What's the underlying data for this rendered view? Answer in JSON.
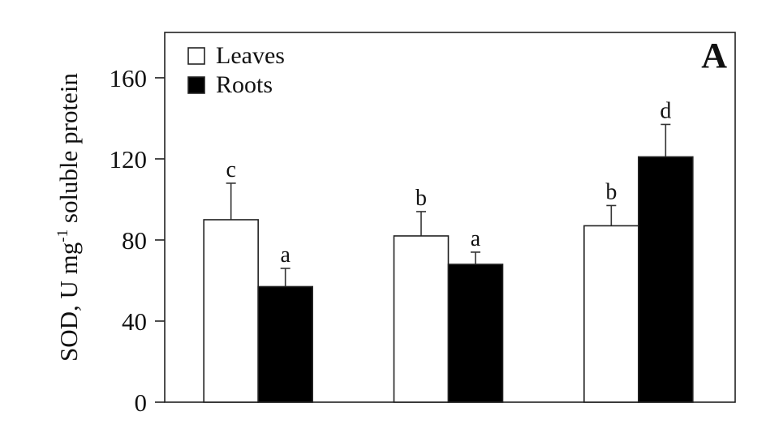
{
  "chart_data": {
    "type": "bar",
    "panel_label": "A",
    "ylabel": "SOD, U mg",
    "ylabel_sup": "-1",
    "ylabel_tail": " soluble protein",
    "ylim": [
      0,
      180
    ],
    "yticks": [
      0,
      40,
      80,
      120,
      160
    ],
    "categories": [
      "",
      "",
      ""
    ],
    "series": [
      {
        "name": "Leaves",
        "color": "#ffffff",
        "values": [
          90,
          82,
          87
        ],
        "errors": [
          18,
          12,
          10
        ],
        "letters": [
          "c",
          "b",
          "b"
        ]
      },
      {
        "name": "Roots",
        "color": "#000000",
        "values": [
          57,
          68,
          121
        ],
        "errors": [
          9,
          6,
          16
        ],
        "letters": [
          "a",
          "a",
          "d"
        ]
      }
    ],
    "legend_position": "top-left",
    "grid": false
  }
}
